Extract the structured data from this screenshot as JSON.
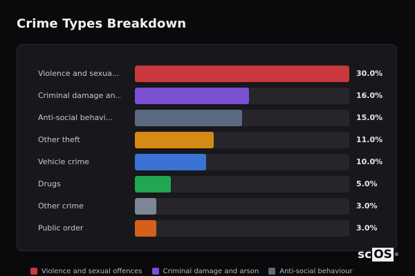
{
  "title": "Crime Types Breakdown",
  "chart_data": {
    "type": "bar",
    "orientation": "horizontal",
    "title": "Crime Types Breakdown",
    "max_value": 30.0,
    "categories": [
      {
        "label": "Violence and sexua...",
        "value": 30.0,
        "value_label": "30.0%",
        "color": "#c9383c"
      },
      {
        "label": "Criminal damage an...",
        "value": 16.0,
        "value_label": "16.0%",
        "color": "#7a4fd3"
      },
      {
        "label": "Anti-social behavi...",
        "value": 15.0,
        "value_label": "15.0%",
        "color": "#5b6a80"
      },
      {
        "label": "Other theft",
        "value": 11.0,
        "value_label": "11.0%",
        "color": "#d68a16"
      },
      {
        "label": "Vehicle crime",
        "value": 10.0,
        "value_label": "10.0%",
        "color": "#3a73d4"
      },
      {
        "label": "Drugs",
        "value": 5.0,
        "value_label": "5.0%",
        "color": "#21a653"
      },
      {
        "label": "Other crime",
        "value": 3.0,
        "value_label": "3.0%",
        "color": "#7d8697"
      },
      {
        "label": "Public order",
        "value": 3.0,
        "value_label": "3.0%",
        "color": "#d4601c"
      }
    ],
    "legend": [
      {
        "label": "Violence and sexual offences",
        "color": "#c9383c"
      },
      {
        "label": "Criminal damage and arson",
        "color": "#7a4fd3"
      },
      {
        "label": "Anti-social behaviour",
        "color": "#5b6a80"
      }
    ]
  },
  "logo": {
    "text_a": "sc",
    "text_b": "OS",
    "mark": "®"
  }
}
